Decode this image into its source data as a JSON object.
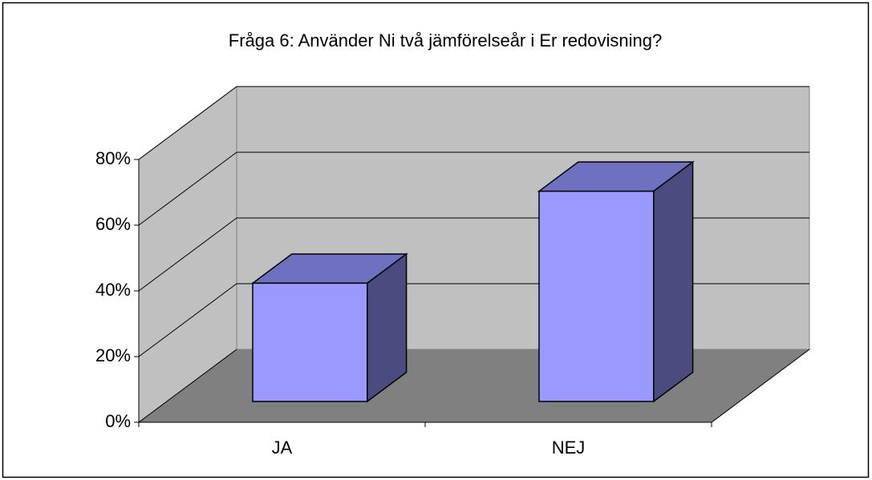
{
  "chart_data": {
    "type": "bar3d",
    "title": "Fråga 6: Använder Ni två jämförelseår i Er redovisning?",
    "categories": [
      "JA",
      "NEJ"
    ],
    "values": [
      36,
      64
    ],
    "color": "#9999ff",
    "ylim": [
      0,
      80
    ],
    "yticks": [
      {
        "value": 0,
        "label": "0%"
      },
      {
        "value": 20,
        "label": "20%"
      },
      {
        "value": 40,
        "label": "40%"
      },
      {
        "value": 60,
        "label": "60%"
      },
      {
        "value": 80,
        "label": "80%"
      }
    ],
    "grid": true
  }
}
